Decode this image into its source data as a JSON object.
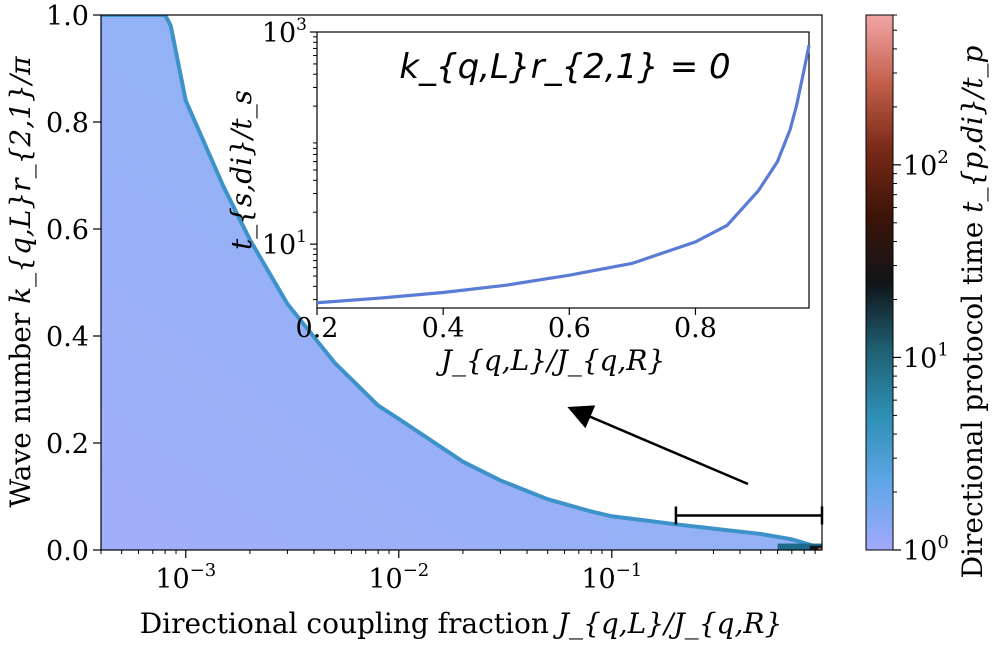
{
  "chart_data": [
    {
      "type": "heatmap",
      "xlabel": "Directional coupling fraction J_{q,L}/J_{q,R}",
      "xlabel_text": "Directional coupling fraction ",
      "xlabel_math": "J_{q,L}/J_{q,R}",
      "ylabel": "Wave number k_{q,L} r_{2,1}/π",
      "ylabel_text": "Wave number ",
      "ylabel_math": "k_{q,L}r_{2,1}/π",
      "x_scale": "log",
      "xlim": [
        0.0004,
        0.97
      ],
      "ylim": [
        0.0,
        1.0
      ],
      "x_ticks": [
        {
          "value": 0.001,
          "label": "10^{-3}"
        },
        {
          "value": 0.01,
          "label": "10^{-2}"
        },
        {
          "value": 0.1,
          "label": "10^{-1}"
        }
      ],
      "y_ticks": [
        {
          "value": 0.0,
          "label": "0.0"
        },
        {
          "value": 0.2,
          "label": "0.2"
        },
        {
          "value": 0.4,
          "label": "0.4"
        },
        {
          "value": 0.6,
          "label": "0.6"
        },
        {
          "value": 0.8,
          "label": "0.8"
        },
        {
          "value": 1.0,
          "label": "1.0"
        }
      ],
      "boundary_note": "Colored region fills from y=0 up to the boundary curve; white above.",
      "boundary": {
        "x": [
          0.0004,
          0.0008,
          0.00085,
          0.001,
          0.0015,
          0.002,
          0.003,
          0.005,
          0.008,
          0.01,
          0.02,
          0.03,
          0.05,
          0.08,
          0.1,
          0.2,
          0.3,
          0.5,
          0.7,
          0.85,
          0.95
        ],
        "y": [
          1.0,
          1.0,
          0.98,
          0.84,
          0.68,
          0.58,
          0.46,
          0.35,
          0.27,
          0.245,
          0.165,
          0.13,
          0.095,
          0.072,
          0.063,
          0.048,
          0.04,
          0.03,
          0.02,
          0.01,
          0.003
        ]
      },
      "colorbar": {
        "label": "Directional protocol time t_{p,di}/t_p",
        "label_text": "Directional protocol time ",
        "label_math": "t_{p,di}/t_p",
        "scale": "log",
        "range": [
          1,
          600
        ],
        "ticks": [
          {
            "value": 1,
            "label": "10^{0}"
          },
          {
            "value": 10,
            "label": "10^{1}"
          },
          {
            "value": 100,
            "label": "10^{2}"
          }
        ],
        "colors": [
          "#a3a9fb",
          "#5fa6e6",
          "#2e8fb5",
          "#1f5f72",
          "#111418",
          "#3d1408",
          "#7a2a18",
          "#c3604d",
          "#f2a6a6"
        ]
      },
      "bracket": {
        "x_from": 0.2,
        "x_to": 0.97,
        "y": 0.1
      }
    },
    {
      "type": "line",
      "xlabel": "J_{q,L}/J_{q,R}",
      "ylabel": "t_{s,di}/t_s",
      "annotation": "k_{q,L}r_{2,1} = 0",
      "y_scale": "log",
      "xlim": [
        0.2,
        0.98
      ],
      "ylim": [
        2.5,
        1000
      ],
      "x_ticks": [
        {
          "value": 0.2,
          "label": "0.2"
        },
        {
          "value": 0.4,
          "label": "0.4"
        },
        {
          "value": 0.6,
          "label": "0.6"
        },
        {
          "value": 0.8,
          "label": "0.8"
        }
      ],
      "y_ticks": [
        {
          "value": 10,
          "label": "10^{1}"
        },
        {
          "value": 1000,
          "label": "10^{3}"
        }
      ],
      "series": [
        {
          "color": "#5a7bd6",
          "x": [
            0.2,
            0.3,
            0.4,
            0.5,
            0.6,
            0.7,
            0.8,
            0.85,
            0.9,
            0.93,
            0.95,
            0.96,
            0.97,
            0.98
          ],
          "y": [
            2.8,
            3.1,
            3.5,
            4.1,
            5.1,
            6.6,
            10.5,
            15,
            32,
            60,
            120,
            200,
            380,
            750
          ]
        }
      ]
    }
  ]
}
